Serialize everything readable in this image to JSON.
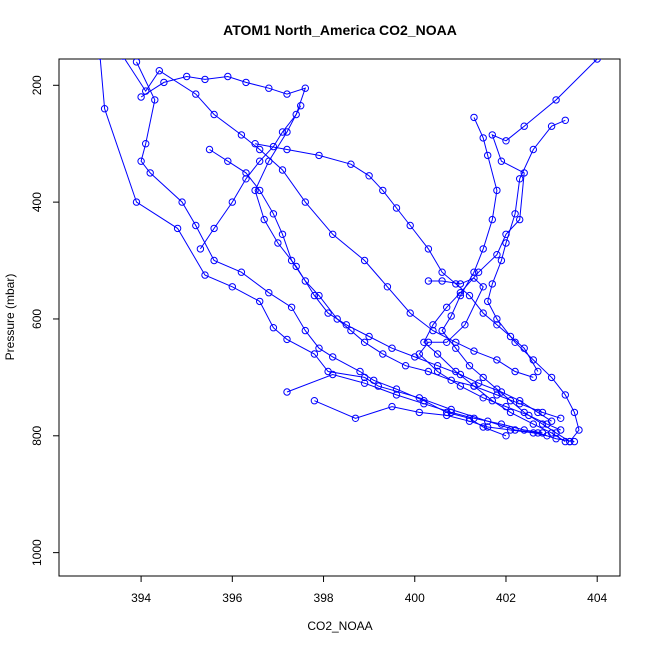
{
  "chart_data": {
    "type": "scatter",
    "title": "ATOM1 North_America CO2_NOAA",
    "xlabel": "CO2_NOAA",
    "ylabel": "Pressure (mbar)",
    "xlim": [
      392.2,
      404.5
    ],
    "ylim": [
      1040,
      155
    ],
    "y_reversed": true,
    "x_ticks": [
      "394",
      "396",
      "398",
      "400",
      "402",
      "404"
    ],
    "y_ticks": [
      "200",
      "400",
      "600",
      "800",
      "1000"
    ],
    "series_color": "#0000ff",
    "marker": "open-circle",
    "connect_points": true,
    "grid": false,
    "series": [
      {
        "points": [
          [
            393.1,
            150
          ],
          [
            393.2,
            240
          ],
          [
            393.9,
            400
          ],
          [
            394.8,
            445
          ],
          [
            395.4,
            525
          ],
          [
            396.0,
            545
          ],
          [
            396.6,
            570
          ],
          [
            396.9,
            615
          ],
          [
            397.2,
            635
          ],
          [
            397.8,
            660
          ],
          [
            398.1,
            690
          ],
          [
            398.9,
            700
          ],
          [
            399.2,
            715
          ],
          [
            400.1,
            735
          ],
          [
            400.8,
            755
          ],
          [
            401.6,
            775
          ],
          [
            402.2,
            790
          ],
          [
            402.7,
            795
          ],
          [
            403.1,
            805
          ],
          [
            403.5,
            810
          ]
        ]
      },
      {
        "points": [
          [
            393.6,
            150
          ],
          [
            394.1,
            210
          ],
          [
            394.4,
            175
          ],
          [
            395.2,
            215
          ],
          [
            395.6,
            250
          ],
          [
            396.2,
            285
          ],
          [
            396.6,
            310
          ],
          [
            397.1,
            345
          ],
          [
            397.6,
            400
          ],
          [
            398.2,
            455
          ],
          [
            398.9,
            500
          ],
          [
            399.4,
            545
          ],
          [
            399.9,
            590
          ],
          [
            400.4,
            620
          ],
          [
            400.9,
            640
          ],
          [
            401.3,
            655
          ],
          [
            401.8,
            670
          ],
          [
            402.2,
            690
          ],
          [
            402.6,
            700
          ]
        ]
      },
      {
        "points": [
          [
            394.0,
            220
          ],
          [
            394.5,
            195
          ],
          [
            395.0,
            185
          ],
          [
            395.4,
            190
          ],
          [
            395.9,
            185
          ],
          [
            396.3,
            195
          ],
          [
            396.8,
            205
          ],
          [
            397.2,
            215
          ],
          [
            397.6,
            205
          ],
          [
            397.4,
            250
          ],
          [
            397.1,
            280
          ],
          [
            396.9,
            305
          ],
          [
            396.6,
            330
          ],
          [
            396.3,
            360
          ],
          [
            396.0,
            400
          ],
          [
            395.6,
            445
          ],
          [
            395.3,
            480
          ]
        ]
      },
      {
        "points": [
          [
            393.9,
            160
          ],
          [
            394.3,
            225
          ],
          [
            394.1,
            300
          ],
          [
            394.0,
            330
          ],
          [
            394.2,
            350
          ],
          [
            394.9,
            400
          ],
          [
            395.2,
            440
          ],
          [
            395.6,
            500
          ],
          [
            396.2,
            520
          ],
          [
            396.8,
            555
          ],
          [
            397.3,
            580
          ],
          [
            397.6,
            620
          ],
          [
            397.9,
            650
          ],
          [
            398.2,
            665
          ],
          [
            398.8,
            690
          ],
          [
            399.1,
            705
          ],
          [
            399.6,
            720
          ],
          [
            400.2,
            740
          ],
          [
            400.7,
            760
          ],
          [
            401.2,
            770
          ],
          [
            401.5,
            785
          ],
          [
            402.0,
            800
          ]
        ]
      },
      {
        "points": [
          [
            395.5,
            310
          ],
          [
            395.9,
            330
          ],
          [
            396.3,
            350
          ],
          [
            396.6,
            380
          ],
          [
            396.9,
            420
          ],
          [
            397.1,
            455
          ],
          [
            397.3,
            500
          ],
          [
            397.6,
            535
          ],
          [
            397.9,
            560
          ],
          [
            398.3,
            600
          ],
          [
            398.6,
            620
          ],
          [
            398.9,
            640
          ],
          [
            399.3,
            660
          ],
          [
            399.8,
            680
          ],
          [
            400.3,
            690
          ],
          [
            400.8,
            705
          ],
          [
            401.3,
            715
          ],
          [
            401.8,
            730
          ],
          [
            402.3,
            745
          ],
          [
            402.8,
            760
          ],
          [
            403.2,
            770
          ]
        ]
      },
      {
        "points": [
          [
            396.5,
            300
          ],
          [
            397.2,
            310
          ],
          [
            397.9,
            320
          ],
          [
            398.6,
            335
          ],
          [
            399.0,
            355
          ],
          [
            399.3,
            380
          ],
          [
            399.6,
            410
          ],
          [
            399.9,
            440
          ],
          [
            400.3,
            480
          ],
          [
            400.6,
            520
          ],
          [
            400.9,
            540
          ],
          [
            401.2,
            560
          ],
          [
            401.5,
            590
          ],
          [
            401.8,
            610
          ],
          [
            402.1,
            630
          ],
          [
            402.4,
            650
          ],
          [
            402.7,
            690
          ]
        ]
      },
      {
        "points": [
          [
            401.3,
            255
          ],
          [
            401.5,
            290
          ],
          [
            401.6,
            320
          ],
          [
            401.8,
            380
          ],
          [
            401.7,
            430
          ],
          [
            401.5,
            480
          ],
          [
            401.3,
            520
          ],
          [
            401.0,
            560
          ],
          [
            400.8,
            595
          ],
          [
            400.6,
            620
          ],
          [
            400.9,
            650
          ],
          [
            401.2,
            680
          ],
          [
            401.5,
            700
          ],
          [
            401.8,
            720
          ],
          [
            402.1,
            740
          ],
          [
            402.4,
            760
          ],
          [
            402.8,
            780
          ],
          [
            403.1,
            795
          ],
          [
            403.4,
            810
          ]
        ]
      },
      {
        "points": [
          [
            404.0,
            155
          ],
          [
            403.1,
            225
          ],
          [
            402.4,
            270
          ],
          [
            402.0,
            295
          ],
          [
            401.7,
            285
          ],
          [
            401.9,
            330
          ],
          [
            402.4,
            350
          ],
          [
            402.3,
            430
          ],
          [
            402.0,
            455
          ],
          [
            401.8,
            490
          ],
          [
            401.4,
            520
          ],
          [
            401.0,
            555
          ],
          [
            400.7,
            580
          ],
          [
            400.4,
            610
          ],
          [
            400.2,
            640
          ],
          [
            400.5,
            660
          ],
          [
            400.9,
            690
          ],
          [
            401.3,
            715
          ],
          [
            401.7,
            740
          ],
          [
            402.1,
            760
          ],
          [
            402.6,
            780
          ],
          [
            403.0,
            795
          ],
          [
            403.3,
            810
          ]
        ]
      },
      {
        "points": [
          [
            403.3,
            260
          ],
          [
            403.0,
            270
          ],
          [
            402.6,
            310
          ],
          [
            402.3,
            360
          ],
          [
            402.2,
            420
          ],
          [
            402.0,
            470
          ],
          [
            401.9,
            500
          ],
          [
            401.7,
            540
          ],
          [
            401.6,
            570
          ],
          [
            401.8,
            600
          ],
          [
            402.2,
            640
          ],
          [
            402.6,
            670
          ],
          [
            403.0,
            700
          ],
          [
            403.3,
            730
          ],
          [
            403.5,
            760
          ],
          [
            403.6,
            790
          ],
          [
            403.4,
            810
          ]
        ]
      },
      {
        "points": [
          [
            397.5,
            235
          ],
          [
            397.2,
            280
          ],
          [
            396.8,
            330
          ],
          [
            396.5,
            380
          ],
          [
            396.7,
            430
          ],
          [
            397.0,
            470
          ],
          [
            397.4,
            510
          ],
          [
            397.8,
            560
          ],
          [
            398.1,
            590
          ],
          [
            398.5,
            610
          ],
          [
            399.0,
            630
          ],
          [
            399.5,
            650
          ],
          [
            400.0,
            665
          ],
          [
            400.5,
            680
          ],
          [
            401.0,
            695
          ],
          [
            401.4,
            710
          ],
          [
            401.9,
            725
          ],
          [
            402.3,
            740
          ],
          [
            402.7,
            760
          ],
          [
            403.0,
            775
          ]
        ]
      },
      {
        "points": [
          [
            400.3,
            535
          ],
          [
            400.6,
            535
          ],
          [
            401.0,
            540
          ],
          [
            401.3,
            530
          ],
          [
            401.5,
            545
          ],
          [
            401.1,
            610
          ],
          [
            400.7,
            640
          ],
          [
            400.3,
            640
          ],
          [
            400.1,
            660
          ],
          [
            400.5,
            690
          ],
          [
            401.0,
            715
          ],
          [
            401.5,
            735
          ],
          [
            402.0,
            750
          ],
          [
            402.5,
            765
          ],
          [
            402.9,
            780
          ],
          [
            403.2,
            790
          ]
        ]
      },
      {
        "points": [
          [
            397.2,
            725
          ],
          [
            398.2,
            695
          ],
          [
            398.9,
            710
          ],
          [
            399.6,
            730
          ],
          [
            400.2,
            745
          ],
          [
            400.8,
            760
          ],
          [
            401.3,
            770
          ],
          [
            401.9,
            780
          ],
          [
            402.4,
            790
          ],
          [
            402.8,
            795
          ]
        ]
      },
      {
        "points": [
          [
            397.8,
            740
          ],
          [
            398.7,
            770
          ],
          [
            399.5,
            750
          ],
          [
            400.1,
            760
          ],
          [
            400.7,
            765
          ],
          [
            401.2,
            775
          ],
          [
            401.6,
            785
          ],
          [
            402.1,
            790
          ],
          [
            402.6,
            795
          ],
          [
            402.9,
            800
          ]
        ]
      }
    ]
  }
}
